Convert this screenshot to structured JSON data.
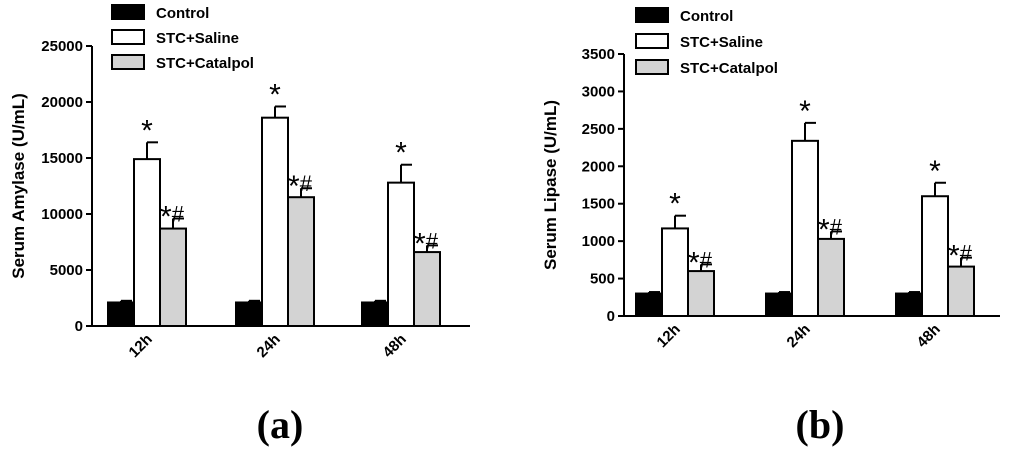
{
  "series_colors": {
    "Control": "#000000",
    "STC+Saline": "#ffffff",
    "STC+Catalpol": "#d3d3d3"
  },
  "chart_data": [
    {
      "type": "bar",
      "panel_label": "(a)",
      "categories": [
        "12h",
        "24h",
        "48h"
      ],
      "ylabel": "Serum Amylase (U/mL)",
      "ylim": [
        0,
        25000
      ],
      "yticks": [
        0,
        5000,
        10000,
        15000,
        20000,
        25000
      ],
      "legend": [
        "Control",
        "STC+Saline",
        "STC+Catalpol"
      ],
      "series": [
        {
          "name": "Control",
          "values": [
            2100,
            2100,
            2100
          ],
          "errors": [
            150,
            150,
            150
          ],
          "annotations": [
            "",
            "",
            ""
          ]
        },
        {
          "name": "STC+Saline",
          "values": [
            14900,
            18600,
            12800
          ],
          "errors": [
            1500,
            1000,
            1600
          ],
          "annotations": [
            "*",
            "*",
            "*"
          ]
        },
        {
          "name": "STC+Catalpol",
          "values": [
            8700,
            11500,
            6600
          ],
          "errors": [
            900,
            800,
            600
          ],
          "annotations": [
            "*#",
            "*#",
            "*#"
          ]
        }
      ]
    },
    {
      "type": "bar",
      "panel_label": "(b)",
      "categories": [
        "12h",
        "24h",
        "48h"
      ],
      "ylabel": "Serum Lipase (U/mL)",
      "ylim": [
        0,
        3500
      ],
      "yticks": [
        0,
        500,
        1000,
        1500,
        2000,
        2500,
        3000,
        3500
      ],
      "legend": [
        "Control",
        "STC+Saline",
        "STC+Catalpol"
      ],
      "series": [
        {
          "name": "Control",
          "values": [
            300,
            300,
            300
          ],
          "errors": [
            20,
            20,
            20
          ],
          "annotations": [
            "",
            "",
            ""
          ]
        },
        {
          "name": "STC+Saline",
          "values": [
            1170,
            2340,
            1600
          ],
          "errors": [
            170,
            240,
            180
          ],
          "annotations": [
            "*",
            "*",
            "*"
          ]
        },
        {
          "name": "STC+Catalpol",
          "values": [
            600,
            1030,
            660
          ],
          "errors": [
            90,
            100,
            120
          ],
          "annotations": [
            "*#",
            "*#",
            "*#"
          ]
        }
      ]
    }
  ]
}
